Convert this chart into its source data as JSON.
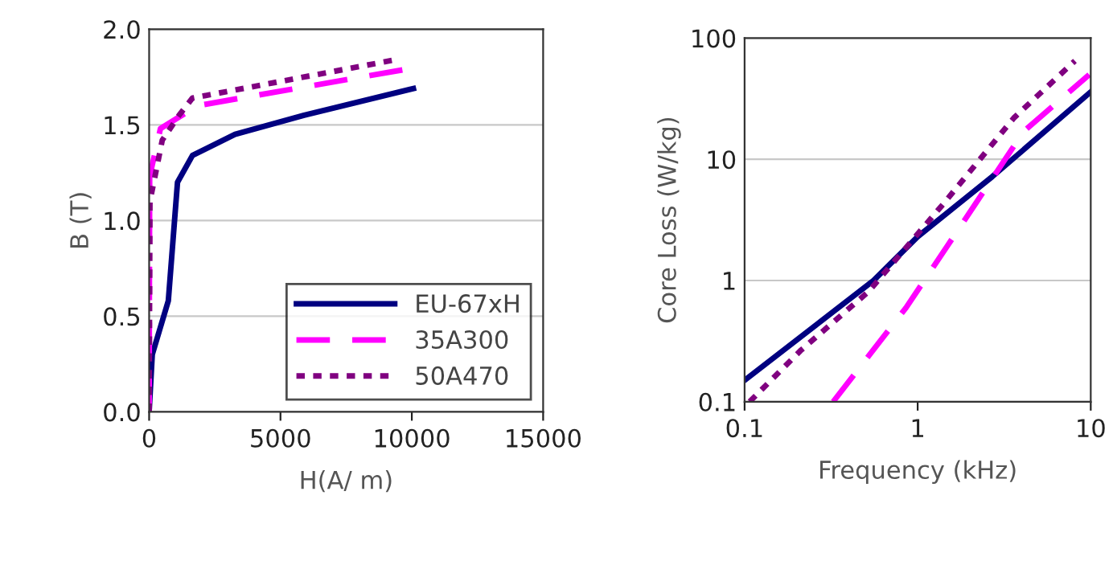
{
  "chart_data": [
    {
      "type": "line",
      "xlabel": "H(A/ m)",
      "ylabel": "B (T)",
      "xlim": [
        0,
        15000
      ],
      "xticks": [
        0,
        5000,
        10000,
        15000
      ],
      "ylim": [
        0,
        2.0
      ],
      "yticks": [
        {
          "value": 0,
          "label": "0.0"
        },
        {
          "value": 0.5,
          "label": "0.5"
        },
        {
          "value": 1.0,
          "label": "1.0"
        },
        {
          "value": 1.5,
          "label": "1.5"
        },
        {
          "value": 2.0,
          "label": "2.0"
        }
      ],
      "grid": "y",
      "legend": "bottom right",
      "series": [
        {
          "name": "EU-67xH",
          "color": "#000080",
          "line_style": "solid",
          "x": [
            0,
            120,
            730,
            1080,
            1650,
            3270,
            5900,
            10060
          ],
          "values": [
            0,
            0.3,
            0.58,
            1.2,
            1.34,
            1.45,
            1.55,
            1.69
          ]
        },
        {
          "name": "35A300",
          "color": "#ff00ff",
          "line_style": "dashed",
          "x": [
            0,
            20,
            430,
            1830,
            9760
          ],
          "values": [
            0,
            1.23,
            1.48,
            1.6,
            1.79
          ]
        },
        {
          "name": "50A470",
          "color": "#800080",
          "line_style": "dotted",
          "x": [
            0,
            30,
            500,
            1140,
            1650,
            9370
          ],
          "values": [
            0,
            1.1,
            1.42,
            1.55,
            1.64,
            1.84
          ]
        }
      ]
    },
    {
      "type": "line",
      "xlabel": "Frequency (kHz)",
      "ylabel": "Core Loss (W/kg)",
      "log": "xy",
      "xlim": [
        0.1,
        10
      ],
      "xticks": [
        0.1,
        1,
        10
      ],
      "ylim": [
        0.1,
        100
      ],
      "yticks": [
        0.1,
        1,
        10,
        100
      ],
      "grid": "y",
      "series": [
        {
          "color": "#000080",
          "line_style": "solid",
          "x": [
            0.1,
            0.556,
            1.0,
            2.7,
            10
          ],
          "values": [
            0.15,
            1.0,
            2.3,
            7.2,
            36
          ]
        },
        {
          "color": "#ff00ff",
          "line_style": "dashed",
          "x": [
            0.325,
            0.855,
            1.51,
            4.1,
            9.8
          ],
          "values": [
            0.1,
            0.594,
            2.0,
            17,
            50
          ]
        },
        {
          "color": "#800080",
          "line_style": "dotted",
          "x": [
            0.107,
            0.21,
            0.52,
            1.41,
            3.6,
            8.1
          ],
          "values": [
            0.1,
            0.263,
            0.81,
            4.3,
            22,
            65
          ]
        }
      ]
    }
  ]
}
